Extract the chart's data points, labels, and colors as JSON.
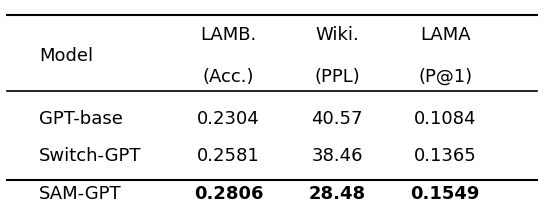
{
  "col_headers": [
    "Model",
    "LAMB.\n(Acc.)",
    "Wiki.\n(PPL)",
    "LAMA\n(P@1)"
  ],
  "rows": [
    [
      "GPT-base",
      "0.2304",
      "40.57",
      "0.1084"
    ],
    [
      "Switch-GPT",
      "0.2581",
      "38.46",
      "0.1365"
    ],
    [
      "SAM-GPT",
      "0.2806",
      "28.48",
      "0.1549"
    ]
  ],
  "bold_row": 2,
  "bg_color": "#ffffff",
  "text_color": "#000000",
  "font_size": 13,
  "header_font_size": 13
}
